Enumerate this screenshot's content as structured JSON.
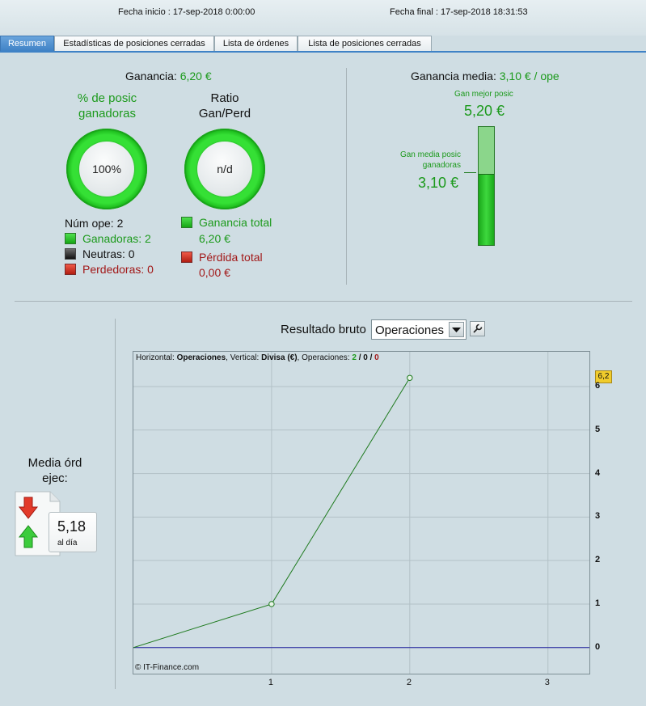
{
  "header": {
    "fecha_inicio": "Fecha inicio :  17-sep-2018 0:00:00",
    "fecha_final": "Fecha final :  17-sep-2018 18:31:53"
  },
  "tabs": [
    {
      "label": "Resumen",
      "active": true
    },
    {
      "label": "Estadísticas de posiciones cerradas",
      "active": false
    },
    {
      "label": "Lista de órdenes",
      "active": false
    },
    {
      "label": "Lista de posiciones cerradas",
      "active": false
    }
  ],
  "summary": {
    "ganancia_label": "Ganancia:",
    "ganancia_value": "6,20 €",
    "pct_title_1": "% de posic",
    "pct_title_2": "ganadoras",
    "pct_value": "100%",
    "pct_fraction": 1.0,
    "ratio_title_1": "Ratio",
    "ratio_title_2": "Gan/Perd",
    "ratio_value": "n/d",
    "num_ope": "Núm ope: 2",
    "ganadoras": "Ganadoras: 2",
    "neutras": "Neutras: 0",
    "perdedoras": "Perdedoras: 0",
    "ganancia_total_label": "Ganancia total",
    "ganancia_total_value": "6,20 €",
    "perdida_total_label": "Pérdida total",
    "perdida_total_value": "0,00 €"
  },
  "ganancia_media": {
    "label": "Ganancia media:",
    "value": "3,10 € / ope",
    "mejor_label": "Gan mejor posic",
    "mejor_value": "5,20 €",
    "media_label_1": "Gan media posic",
    "media_label_2": "ganadoras",
    "media_value": "3,10 €",
    "bar_fill_fraction": 0.596
  },
  "media_ord": {
    "title_1": "Media órd",
    "title_2": "ejec:",
    "value": "5,18",
    "unit": "al día"
  },
  "chart_header": {
    "title": "Resultado bruto",
    "select_value": "Operaciones"
  },
  "chart_data": {
    "type": "line",
    "legend_prefix": "Horizontal: ",
    "legend_h": "Operaciones",
    "legend_mid": ", Vertical: ",
    "legend_v": "Divisa (€)",
    "legend_ops": ", Operaciones: ",
    "legend_g": "2",
    "legend_s1": " / ",
    "legend_n": "0",
    "legend_s2": " / ",
    "legend_r": "0",
    "x": [
      0,
      1,
      2
    ],
    "y": [
      0,
      1,
      6.2
    ],
    "xlim": [
      0,
      3.3
    ],
    "ylim": [
      -0.6,
      6.8
    ],
    "x_ticks": [
      "1",
      "2",
      "3"
    ],
    "y_ticks": [
      "0",
      "1",
      "2",
      "3",
      "4",
      "5",
      "6"
    ],
    "last_value_badge": "6,2",
    "watermark": "© IT-Finance.com",
    "line_color": "#1e7a1e",
    "zero_line_color": "#2020a0",
    "grid": true
  }
}
